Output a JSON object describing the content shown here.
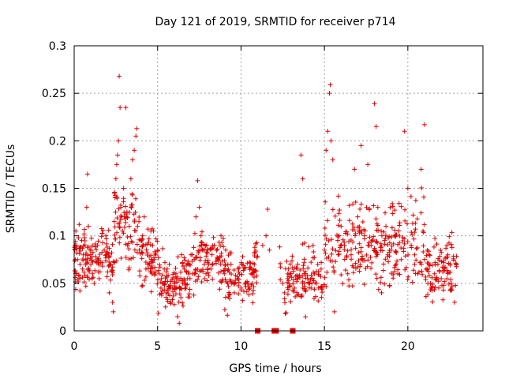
{
  "chart_data": {
    "type": "scatter",
    "title": "Day 121 of 2019, SRMTID for receiver p714",
    "xlabel": "GPS time / hours",
    "ylabel": "SRMTID / TECUs",
    "xlim": [
      0,
      24.5
    ],
    "ylim": [
      0,
      0.3
    ],
    "xticks": [
      0,
      5,
      10,
      15,
      20
    ],
    "xtick_labels": [
      "0",
      "5",
      "10",
      "15",
      "20"
    ],
    "yticks": [
      0,
      0.05,
      0.1,
      0.15,
      0.2,
      0.25,
      0.3
    ],
    "ytick_labels": [
      "0",
      "0.05",
      "0.1",
      "0.15",
      "0.2",
      "0.25",
      "0.3"
    ],
    "grid": true,
    "marker": "plus",
    "color": "#e00000",
    "series": [
      {
        "name": "SRMTID",
        "note": "dense cloud of several thousand points; a representative subset is listed",
        "points": [
          [
            0.05,
            0.09
          ],
          [
            0.1,
            0.105
          ],
          [
            0.15,
            0.082
          ],
          [
            0.2,
            0.075
          ],
          [
            0.25,
            0.098
          ],
          [
            0.3,
            0.112
          ],
          [
            0.35,
            0.07
          ],
          [
            0.4,
            0.088
          ],
          [
            0.45,
            0.095
          ],
          [
            0.5,
            0.065
          ],
          [
            0.55,
            0.08
          ],
          [
            0.6,
            0.102
          ],
          [
            0.65,
            0.058
          ],
          [
            0.7,
            0.075
          ],
          [
            0.75,
            0.13
          ],
          [
            0.8,
            0.165
          ],
          [
            0.85,
            0.11
          ],
          [
            0.9,
            0.062
          ],
          [
            0.95,
            0.085
          ],
          [
            1.0,
            0.07
          ],
          [
            1.1,
            0.06
          ],
          [
            1.2,
            0.05
          ],
          [
            1.3,
            0.078
          ],
          [
            1.4,
            0.09
          ],
          [
            1.5,
            0.055
          ],
          [
            1.6,
            0.072
          ],
          [
            1.7,
            0.068
          ],
          [
            1.8,
            0.085
          ],
          [
            1.9,
            0.1
          ],
          [
            2.0,
            0.062
          ],
          [
            2.1,
            0.04
          ],
          [
            2.2,
            0.07
          ],
          [
            2.3,
            0.03
          ],
          [
            2.35,
            0.02
          ],
          [
            2.4,
            0.115
          ],
          [
            2.45,
            0.14
          ],
          [
            2.5,
            0.16
          ],
          [
            2.55,
            0.175
          ],
          [
            2.6,
            0.185
          ],
          [
            2.65,
            0.2
          ],
          [
            2.7,
            0.268
          ],
          [
            2.75,
            0.235
          ],
          [
            2.8,
            0.13
          ],
          [
            2.85,
            0.12
          ],
          [
            2.9,
            0.105
          ],
          [
            2.95,
            0.15
          ],
          [
            3.0,
            0.12
          ],
          [
            3.1,
            0.235
          ],
          [
            3.2,
            0.09
          ],
          [
            3.3,
            0.11
          ],
          [
            3.4,
            0.16
          ],
          [
            3.5,
            0.18
          ],
          [
            3.6,
            0.19
          ],
          [
            3.7,
            0.205
          ],
          [
            3.75,
            0.213
          ],
          [
            3.8,
            0.11
          ],
          [
            3.9,
            0.085
          ],
          [
            4.0,
            0.095
          ],
          [
            4.1,
            0.1
          ],
          [
            4.2,
            0.12
          ],
          [
            4.3,
            0.065
          ],
          [
            4.4,
            0.07
          ],
          [
            4.5,
            0.078
          ],
          [
            4.6,
            0.105
          ],
          [
            4.7,
            0.09
          ],
          [
            4.8,
            0.075
          ],
          [
            4.9,
            0.08
          ],
          [
            5.0,
            0.085
          ],
          [
            5.1,
            0.06
          ],
          [
            5.2,
            0.045
          ],
          [
            5.3,
            0.05
          ],
          [
            5.4,
            0.065
          ],
          [
            5.5,
            0.04
          ],
          [
            5.6,
            0.052
          ],
          [
            5.7,
            0.07
          ],
          [
            5.8,
            0.03
          ],
          [
            5.9,
            0.045
          ],
          [
            6.0,
            0.05
          ],
          [
            6.1,
            0.06
          ],
          [
            6.2,
            0.015
          ],
          [
            6.3,
            0.008
          ],
          [
            6.4,
            0.035
          ],
          [
            6.5,
            0.05
          ],
          [
            6.6,
            0.065
          ],
          [
            6.7,
            0.045
          ],
          [
            6.8,
            0.055
          ],
          [
            6.9,
            0.07
          ],
          [
            7.0,
            0.08
          ],
          [
            7.1,
            0.06
          ],
          [
            7.2,
            0.075
          ],
          [
            7.3,
            0.12
          ],
          [
            7.4,
            0.158
          ],
          [
            7.5,
            0.13
          ],
          [
            7.6,
            0.1
          ],
          [
            7.7,
            0.085
          ],
          [
            7.8,
            0.07
          ],
          [
            7.9,
            0.06
          ],
          [
            8.0,
            0.085
          ],
          [
            8.2,
            0.065
          ],
          [
            8.4,
            0.09
          ],
          [
            8.6,
            0.075
          ],
          [
            8.8,
            0.1
          ],
          [
            9.0,
            0.06
          ],
          [
            9.2,
            0.05
          ],
          [
            9.4,
            0.07
          ],
          [
            9.6,
            0.04
          ],
          [
            9.8,
            0.055
          ],
          [
            10.0,
            0.045
          ],
          [
            10.2,
            0.065
          ],
          [
            10.4,
            0.05
          ],
          [
            10.6,
            0.06
          ],
          [
            10.8,
            0.07
          ],
          [
            11.0,
            0.0
          ],
          [
            11.3,
            0.09
          ],
          [
            11.5,
            0.1
          ],
          [
            11.6,
            0.128
          ],
          [
            11.7,
            0.085
          ],
          [
            12.0,
            0.0
          ],
          [
            12.1,
            0.0
          ],
          [
            12.5,
            0.05
          ],
          [
            12.6,
            0.04
          ],
          [
            12.8,
            0.055
          ],
          [
            13.0,
            0.06
          ],
          [
            13.1,
            0.0
          ],
          [
            13.2,
            0.045
          ],
          [
            13.4,
            0.07
          ],
          [
            13.6,
            0.185
          ],
          [
            13.7,
            0.16
          ],
          [
            13.8,
            0.05
          ],
          [
            14.0,
            0.055
          ],
          [
            14.2,
            0.045
          ],
          [
            14.4,
            0.06
          ],
          [
            14.6,
            0.07
          ],
          [
            14.8,
            0.065
          ],
          [
            15.0,
            0.085
          ],
          [
            15.1,
            0.19
          ],
          [
            15.2,
            0.21
          ],
          [
            15.3,
            0.25
          ],
          [
            15.35,
            0.259
          ],
          [
            15.4,
            0.2
          ],
          [
            15.5,
            0.18
          ],
          [
            15.6,
            0.02
          ],
          [
            15.8,
            0.095
          ],
          [
            16.0,
            0.11
          ],
          [
            16.2,
            0.09
          ],
          [
            16.4,
            0.06
          ],
          [
            16.6,
            0.08
          ],
          [
            16.8,
            0.17
          ],
          [
            17.0,
            0.12
          ],
          [
            17.2,
            0.195
          ],
          [
            17.4,
            0.1
          ],
          [
            17.6,
            0.175
          ],
          [
            17.8,
            0.09
          ],
          [
            18.0,
            0.239
          ],
          [
            18.1,
            0.215
          ],
          [
            18.2,
            0.13
          ],
          [
            18.4,
            0.105
          ],
          [
            18.6,
            0.095
          ],
          [
            18.8,
            0.08
          ],
          [
            19.0,
            0.085
          ],
          [
            19.2,
            0.1
          ],
          [
            19.4,
            0.06
          ],
          [
            19.6,
            0.075
          ],
          [
            19.8,
            0.21
          ],
          [
            20.0,
            0.15
          ],
          [
            20.2,
            0.09
          ],
          [
            20.4,
            0.07
          ],
          [
            20.6,
            0.06
          ],
          [
            20.8,
            0.17
          ],
          [
            21.0,
            0.217
          ],
          [
            21.2,
            0.05
          ],
          [
            21.4,
            0.045
          ],
          [
            21.6,
            0.06
          ],
          [
            21.8,
            0.07
          ],
          [
            22.0,
            0.055
          ],
          [
            22.2,
            0.065
          ],
          [
            22.4,
            0.08
          ],
          [
            22.6,
            0.05
          ],
          [
            22.8,
            0.03
          ],
          [
            22.9,
            0.07
          ]
        ]
      }
    ]
  }
}
